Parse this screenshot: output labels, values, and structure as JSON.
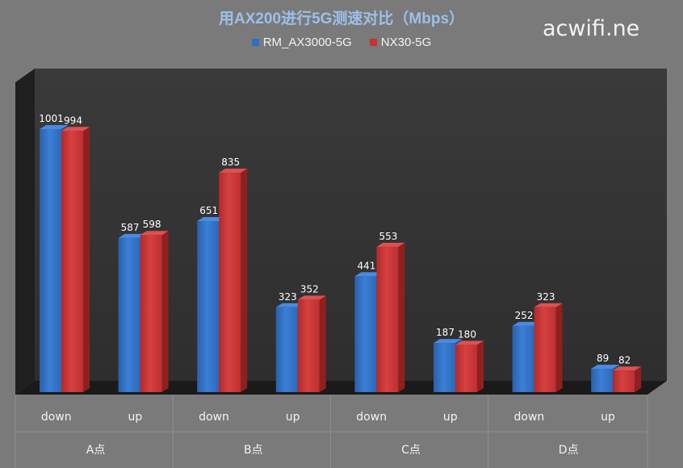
{
  "chart_data": {
    "type": "bar",
    "title": "用AX200进行5G测速对比（Mbps）",
    "categories": [
      "down",
      "up",
      "down",
      "up",
      "down",
      "up",
      "down",
      "up"
    ],
    "groups": [
      "A点",
      "B点",
      "C点",
      "D点"
    ],
    "series": [
      {
        "name": "RM_AX3000-5G",
        "color": "#2f6fc5",
        "values": [
          1001,
          587,
          651,
          323,
          441,
          187,
          252,
          89
        ]
      },
      {
        "name": "NX30-5G",
        "color": "#c73232",
        "values": [
          994,
          598,
          835,
          352,
          553,
          180,
          323,
          82
        ]
      }
    ],
    "ylim": [
      0,
      1100
    ],
    "grid": false,
    "legend_position": "top"
  },
  "watermark": "acwifi.ne"
}
